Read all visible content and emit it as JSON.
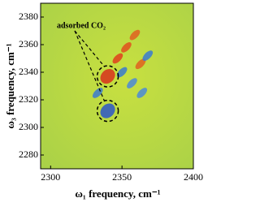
{
  "chart_data": {
    "type": "contour",
    "x_label": "ω₁ frequency, cm⁻¹",
    "y_label": "ω₃ frequency, cm⁻¹",
    "annotation": "adsorbed CO₂",
    "xlim": [
      2293,
      2400
    ],
    "xticks": [
      2300,
      2350,
      2400
    ],
    "ylim": [
      2270,
      2390
    ],
    "yticks": [
      2280,
      2300,
      2320,
      2340,
      2360,
      2380
    ],
    "peaks": {
      "x": [
        2340,
        2340,
        2347,
        2353,
        2359,
        2350,
        2357,
        2364,
        2333,
        2363,
        2368
      ],
      "y": [
        2337,
        2312,
        2350,
        2358,
        2367,
        2340,
        2332,
        2325,
        2325,
        2346,
        2352
      ],
      "colors": [
        "#d8301c",
        "#2c56c8",
        "#e0401c",
        "#e0501c",
        "#e06020",
        "#3a7ad0",
        "#4a8ad8",
        "#4a8ad8",
        "#3a7ad0",
        "#e06020",
        "#3a7ad0"
      ]
    },
    "highlighted": [
      0,
      1
    ]
  }
}
